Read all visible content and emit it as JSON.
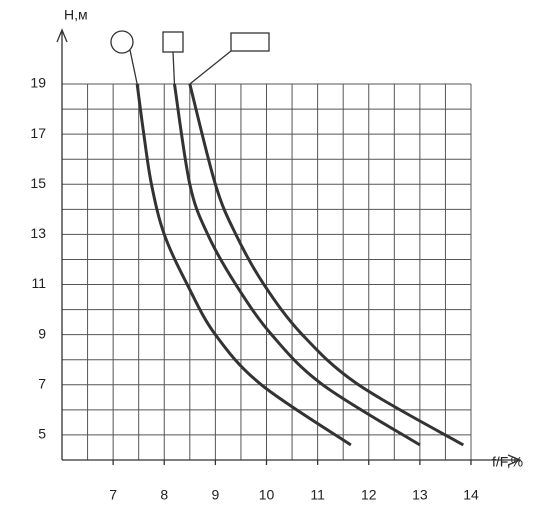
{
  "chart_data": {
    "type": "line",
    "x_label": "f/F,%",
    "y_label": "H,м",
    "xlim": [
      6,
      14
    ],
    "ylim": [
      4,
      19
    ],
    "xticks": [
      7,
      8,
      9,
      10,
      11,
      12,
      13,
      14
    ],
    "yticks": [
      5,
      7,
      9,
      11,
      13,
      15,
      17,
      19
    ],
    "xgrid": [
      6.5,
      7,
      7.5,
      8,
      8.5,
      9,
      9.5,
      10,
      10.5,
      11,
      11.5,
      12,
      12.5,
      13,
      13.5,
      14
    ],
    "ygrid": [
      5,
      6,
      7,
      8,
      9,
      10,
      11,
      12,
      13,
      14,
      15,
      16,
      17,
      18,
      19
    ],
    "grid": true,
    "series": [
      {
        "marker": "circle",
        "color": "#333333",
        "x": [
          7.47,
          7.6,
          7.75,
          8.0,
          8.45,
          9.0,
          9.9,
          11.65
        ],
        "values": [
          19,
          17,
          15,
          13,
          11,
          9,
          7,
          4.6
        ]
      },
      {
        "marker": "square",
        "color": "#333333",
        "x": [
          8.2,
          8.5,
          8.85,
          9.4,
          10.1,
          11.1,
          13.0
        ],
        "values": [
          19,
          15,
          13,
          11,
          9,
          7,
          4.6
        ]
      },
      {
        "marker": "rect",
        "color": "#333333",
        "x": [
          8.5,
          9.0,
          9.4,
          9.95,
          10.7,
          11.8,
          13.85
        ],
        "values": [
          19,
          15,
          13,
          11,
          9,
          7,
          4.6
        ]
      }
    ]
  }
}
